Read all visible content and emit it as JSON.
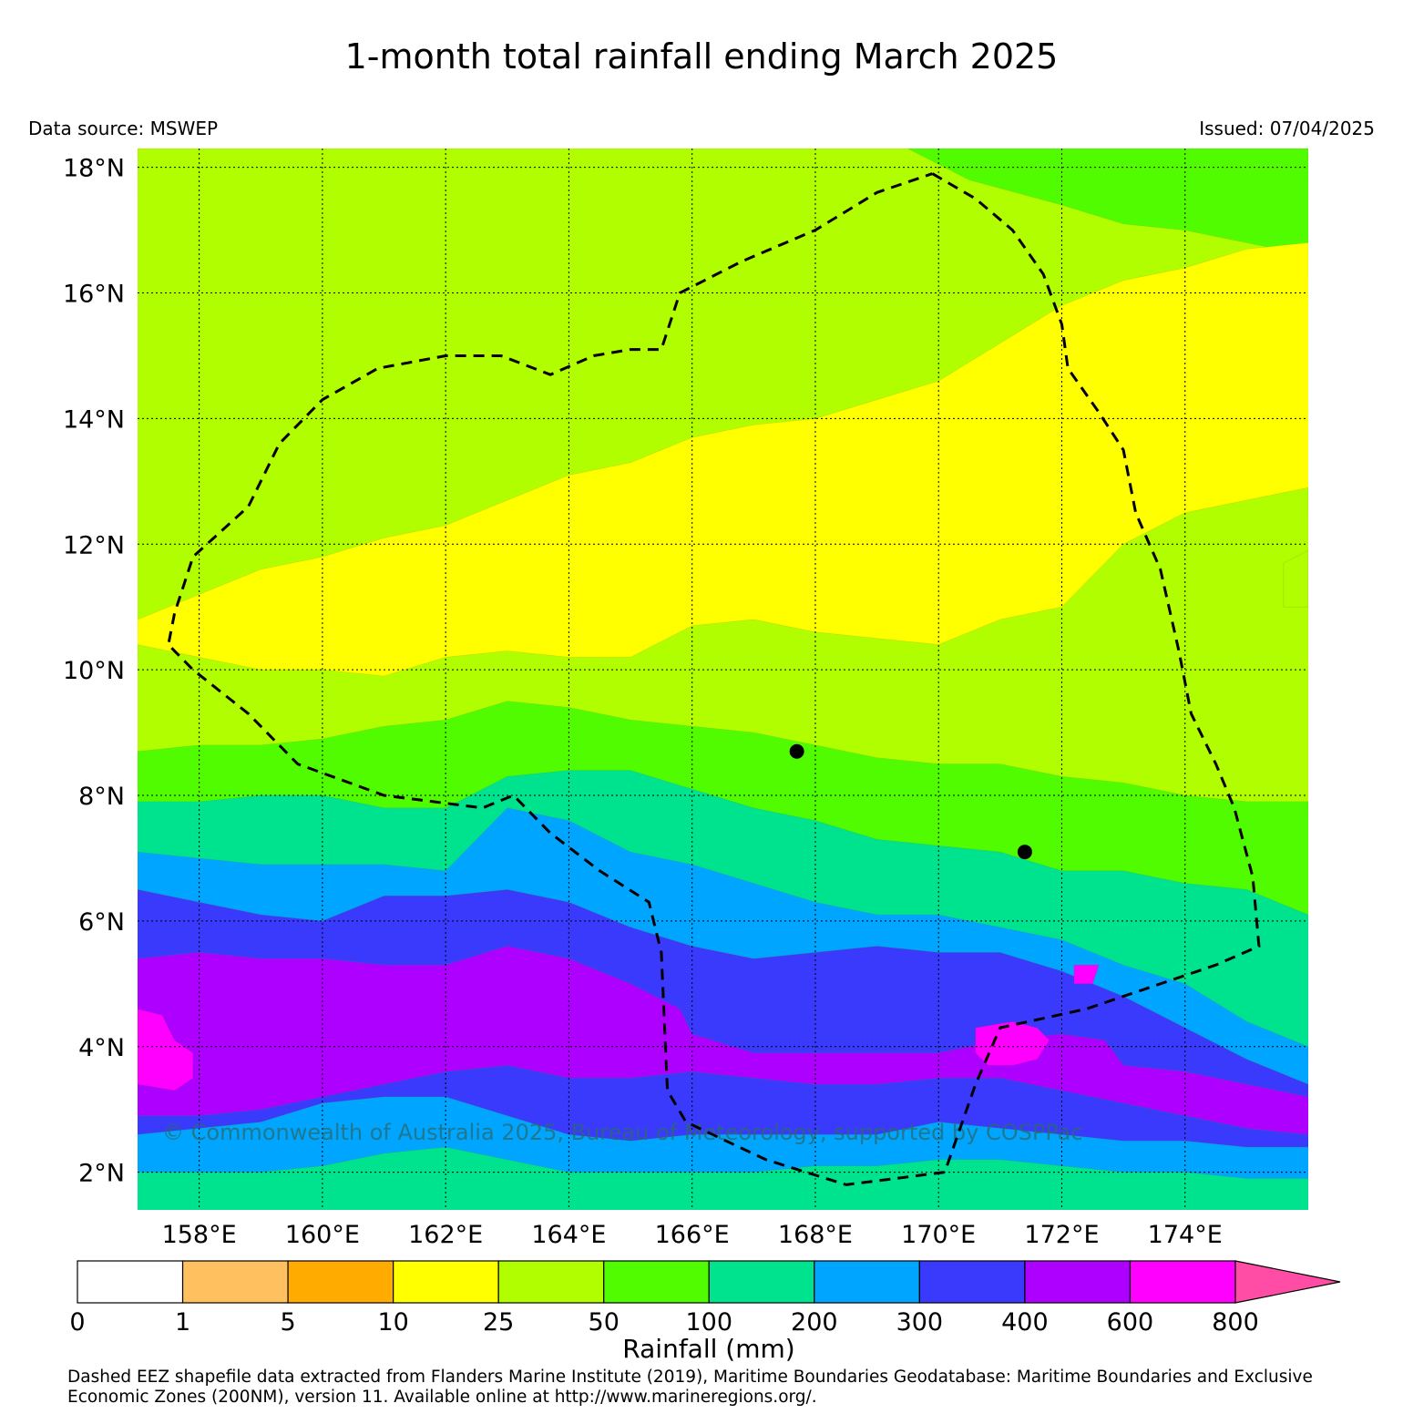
{
  "title": "1-month total rainfall ending March 2025",
  "data_source": "Data source: MSWEP",
  "issued": "Issued: 07/04/2025",
  "watermark": "© Commonwealth of Australia 2025, Bureau of Meteorology, supported by COSPPac",
  "footnote": "Dashed EEZ shapefile data extracted from Flanders Marine Institute (2019), Maritime Boundaries Geodatabase: Maritime Boundaries and Exclusive Economic Zones (200NM), version 11. Available online at http://www.marineregions.org/.",
  "map": {
    "lon_range": [
      157,
      176
    ],
    "lat_range": [
      1.4,
      18.3
    ],
    "lon_ticks": [
      158,
      160,
      162,
      164,
      166,
      168,
      170,
      172,
      174
    ],
    "lon_tick_labels": [
      "158°E",
      "160°E",
      "162°E",
      "164°E",
      "166°E",
      "168°E",
      "170°E",
      "172°E",
      "174°E"
    ],
    "lat_ticks": [
      2,
      4,
      6,
      8,
      10,
      12,
      14,
      16,
      18
    ],
    "lat_tick_labels": [
      "2°N",
      "4°N",
      "6°N",
      "8°N",
      "10°N",
      "12°N",
      "14°N",
      "16°N",
      "18°N"
    ],
    "grid": true,
    "eez_boundary": [
      [
        169.9,
        17.9
      ],
      [
        170.6,
        17.5
      ],
      [
        171.2,
        17.0
      ],
      [
        171.7,
        16.3
      ],
      [
        172.0,
        15.5
      ],
      [
        172.1,
        14.8
      ],
      [
        172.6,
        14.1
      ],
      [
        173.0,
        13.5
      ],
      [
        173.2,
        12.5
      ],
      [
        173.6,
        11.6
      ],
      [
        173.9,
        10.3
      ],
      [
        174.1,
        9.3
      ],
      [
        174.5,
        8.5
      ],
      [
        174.8,
        7.8
      ],
      [
        175.1,
        6.7
      ],
      [
        175.2,
        5.6
      ],
      [
        174.5,
        5.3
      ],
      [
        173.0,
        4.8
      ],
      [
        172.4,
        4.6
      ],
      [
        171.0,
        4.3
      ],
      [
        170.6,
        3.4
      ],
      [
        170.1,
        2.0
      ],
      [
        168.5,
        1.8
      ],
      [
        167.2,
        2.2
      ],
      [
        165.9,
        2.8
      ],
      [
        165.6,
        3.3
      ],
      [
        165.5,
        5.5
      ],
      [
        165.3,
        6.3
      ],
      [
        164.5,
        6.8
      ],
      [
        163.7,
        7.4
      ],
      [
        163.1,
        8.0
      ],
      [
        162.6,
        7.8
      ],
      [
        161.0,
        8.0
      ],
      [
        159.6,
        8.5
      ],
      [
        158.8,
        9.3
      ],
      [
        157.9,
        10.0
      ],
      [
        157.5,
        10.4
      ],
      [
        157.6,
        10.9
      ],
      [
        157.9,
        11.8
      ],
      [
        158.8,
        12.6
      ],
      [
        159.3,
        13.6
      ],
      [
        160.0,
        14.3
      ],
      [
        160.9,
        14.8
      ],
      [
        162.0,
        15.0
      ],
      [
        162.9,
        15.0
      ],
      [
        163.7,
        14.7
      ],
      [
        164.4,
        15.0
      ],
      [
        165.0,
        15.1
      ],
      [
        165.5,
        15.1
      ],
      [
        165.8,
        16.0
      ],
      [
        166.8,
        16.5
      ],
      [
        168.0,
        17.0
      ],
      [
        169.0,
        17.6
      ],
      [
        169.9,
        17.9
      ]
    ],
    "markers": [
      {
        "lon": 167.7,
        "lat": 8.7
      },
      {
        "lon": 171.4,
        "lat": 7.1
      }
    ],
    "rainfall_zones": [
      {
        "category_index": 5,
        "color": "#52fc00",
        "upper_boundary": [
          [
            157,
            18.3
          ],
          [
            176,
            18.3
          ]
        ]
      },
      {
        "category_index": 4,
        "color": "#b0fe00",
        "upper_boundary": [
          [
            157,
            18.3
          ],
          [
            169.5,
            18.3
          ],
          [
            170.5,
            17.8
          ],
          [
            172,
            17.4
          ],
          [
            173,
            17.1
          ],
          [
            174,
            17.0
          ],
          [
            175,
            16.8
          ],
          [
            176,
            16.6
          ]
        ]
      },
      {
        "category_index": 3,
        "color": "#ffff00",
        "upper_boundary": [
          [
            157,
            10.8
          ],
          [
            158,
            11.2
          ],
          [
            159,
            11.6
          ],
          [
            160,
            11.8
          ],
          [
            161,
            12.1
          ],
          [
            162,
            12.3
          ],
          [
            163,
            12.7
          ],
          [
            164,
            13.1
          ],
          [
            165,
            13.3
          ],
          [
            166,
            13.7
          ],
          [
            167,
            13.9
          ],
          [
            168,
            14.0
          ],
          [
            169,
            14.3
          ],
          [
            170,
            14.6
          ],
          [
            171,
            15.2
          ],
          [
            172,
            15.8
          ],
          [
            173,
            16.2
          ],
          [
            174,
            16.4
          ],
          [
            175,
            16.7
          ],
          [
            176,
            16.8
          ]
        ]
      },
      {
        "category_index": 4,
        "color": "#b0fe00",
        "upper_boundary": [
          [
            157,
            10.4
          ],
          [
            158,
            10.2
          ],
          [
            159,
            10.0
          ],
          [
            160,
            10.0
          ],
          [
            161,
            9.9
          ],
          [
            162,
            10.2
          ],
          [
            163,
            10.3
          ],
          [
            164,
            10.2
          ],
          [
            165,
            10.2
          ],
          [
            166,
            10.7
          ],
          [
            167,
            10.8
          ],
          [
            168,
            10.6
          ],
          [
            169,
            10.5
          ],
          [
            170,
            10.4
          ],
          [
            171,
            10.8
          ],
          [
            172,
            11.0
          ],
          [
            173,
            12.0
          ],
          [
            174,
            12.5
          ],
          [
            175,
            12.7
          ],
          [
            176,
            12.9
          ]
        ]
      },
      {
        "category_index": 5,
        "color": "#52fc00",
        "upper_boundary": [
          [
            157,
            8.7
          ],
          [
            158,
            8.8
          ],
          [
            159,
            8.8
          ],
          [
            160,
            8.9
          ],
          [
            161,
            9.1
          ],
          [
            162,
            9.2
          ],
          [
            163,
            9.5
          ],
          [
            164,
            9.4
          ],
          [
            165,
            9.2
          ],
          [
            166,
            9.1
          ],
          [
            167,
            9.0
          ],
          [
            168,
            8.8
          ],
          [
            169,
            8.6
          ],
          [
            170,
            8.5
          ],
          [
            171,
            8.5
          ],
          [
            172,
            8.3
          ],
          [
            173,
            8.2
          ],
          [
            174,
            8.0
          ],
          [
            175,
            7.9
          ],
          [
            176,
            7.9
          ]
        ]
      },
      {
        "category_index": 6,
        "color": "#00e38e",
        "upper_boundary": [
          [
            157,
            7.9
          ],
          [
            158,
            7.9
          ],
          [
            159,
            8.0
          ],
          [
            160,
            8.0
          ],
          [
            161,
            7.8
          ],
          [
            162,
            7.8
          ],
          [
            163,
            8.3
          ],
          [
            164,
            8.4
          ],
          [
            165,
            8.4
          ],
          [
            166,
            8.1
          ],
          [
            167,
            7.8
          ],
          [
            168,
            7.6
          ],
          [
            169,
            7.3
          ],
          [
            170,
            7.2
          ],
          [
            171,
            7.1
          ],
          [
            172,
            6.8
          ],
          [
            173,
            6.8
          ],
          [
            174,
            6.6
          ],
          [
            175,
            6.5
          ],
          [
            176,
            6.1
          ]
        ]
      },
      {
        "category_index": 7,
        "color": "#00a5ff",
        "upper_boundary": [
          [
            157,
            7.1
          ],
          [
            158,
            7.0
          ],
          [
            159,
            6.9
          ],
          [
            160,
            6.9
          ],
          [
            161,
            6.9
          ],
          [
            162,
            6.8
          ],
          [
            163,
            7.8
          ],
          [
            164,
            7.6
          ],
          [
            165,
            7.1
          ],
          [
            166,
            6.9
          ],
          [
            167,
            6.6
          ],
          [
            168,
            6.3
          ],
          [
            169,
            6.1
          ],
          [
            170,
            6.1
          ],
          [
            171,
            5.9
          ],
          [
            172,
            5.7
          ],
          [
            173,
            5.3
          ],
          [
            174,
            5.0
          ],
          [
            175,
            4.4
          ],
          [
            176,
            4.0
          ]
        ]
      },
      {
        "category_index": 8,
        "color": "#3a3afc",
        "upper_boundary": [
          [
            157,
            6.5
          ],
          [
            158,
            6.3
          ],
          [
            159,
            6.1
          ],
          [
            160,
            6.0
          ],
          [
            161,
            6.4
          ],
          [
            162,
            6.4
          ],
          [
            163,
            6.5
          ],
          [
            164,
            6.3
          ],
          [
            165,
            5.9
          ],
          [
            166,
            5.6
          ],
          [
            167,
            5.4
          ],
          [
            168,
            5.5
          ],
          [
            169,
            5.6
          ],
          [
            170,
            5.5
          ],
          [
            171,
            5.5
          ],
          [
            172,
            5.2
          ],
          [
            173,
            4.8
          ],
          [
            174,
            4.3
          ],
          [
            175,
            3.8
          ],
          [
            176,
            3.4
          ]
        ]
      },
      {
        "category_index": 9,
        "color": "#ad00ff",
        "upper_boundary": [
          [
            157,
            5.4
          ],
          [
            158,
            5.5
          ],
          [
            159,
            5.4
          ],
          [
            160,
            5.4
          ],
          [
            161,
            5.3
          ],
          [
            162,
            5.3
          ],
          [
            163,
            5.6
          ],
          [
            164,
            5.4
          ],
          [
            165,
            5.0
          ],
          [
            165.8,
            4.6
          ],
          [
            166,
            4.2
          ],
          [
            167,
            3.9
          ],
          [
            168,
            3.9
          ],
          [
            169,
            3.9
          ],
          [
            170,
            3.9
          ],
          [
            171,
            4.1
          ],
          [
            172,
            4.2
          ],
          [
            172.7,
            4.1
          ],
          [
            173,
            3.7
          ],
          [
            174,
            3.6
          ],
          [
            175,
            3.4
          ],
          [
            176,
            3.2
          ]
        ]
      },
      {
        "category_index": 8,
        "color": "#3a3afc",
        "upper_boundary": [
          [
            157,
            2.9
          ],
          [
            158,
            2.9
          ],
          [
            159,
            3.0
          ],
          [
            160,
            3.2
          ],
          [
            161,
            3.4
          ],
          [
            162,
            3.6
          ],
          [
            163,
            3.7
          ],
          [
            164,
            3.5
          ],
          [
            165,
            3.5
          ],
          [
            166,
            3.6
          ],
          [
            167,
            3.5
          ],
          [
            168,
            3.4
          ],
          [
            169,
            3.4
          ],
          [
            170,
            3.5
          ],
          [
            171,
            3.5
          ],
          [
            172,
            3.3
          ],
          [
            173,
            3.1
          ],
          [
            174,
            2.9
          ],
          [
            175,
            2.7
          ],
          [
            176,
            2.6
          ]
        ]
      },
      {
        "category_index": 7,
        "color": "#00a5ff",
        "upper_boundary": [
          [
            157,
            2.6
          ],
          [
            158,
            2.7
          ],
          [
            159,
            2.8
          ],
          [
            160,
            3.1
          ],
          [
            161,
            3.2
          ],
          [
            162,
            3.2
          ],
          [
            163,
            2.9
          ],
          [
            164,
            2.6
          ],
          [
            165,
            2.5
          ],
          [
            166,
            2.6
          ],
          [
            167,
            2.6
          ],
          [
            168,
            2.6
          ],
          [
            169,
            2.6
          ],
          [
            170,
            2.8
          ],
          [
            171,
            2.7
          ],
          [
            172,
            2.6
          ],
          [
            173,
            2.5
          ],
          [
            174,
            2.5
          ],
          [
            175,
            2.4
          ],
          [
            176,
            2.4
          ]
        ]
      },
      {
        "category_index": 6,
        "color": "#00e38e",
        "upper_boundary": [
          [
            157,
            2.0
          ],
          [
            158,
            2.0
          ],
          [
            159,
            2.0
          ],
          [
            160,
            2.1
          ],
          [
            161,
            2.3
          ],
          [
            162,
            2.4
          ],
          [
            163,
            2.2
          ],
          [
            164,
            2.0
          ],
          [
            165,
            2.0
          ],
          [
            166,
            2.0
          ],
          [
            167,
            2.0
          ],
          [
            168,
            2.1
          ],
          [
            169,
            2.1
          ],
          [
            170,
            2.2
          ],
          [
            171,
            2.2
          ],
          [
            172,
            2.1
          ],
          [
            173,
            2.0
          ],
          [
            174,
            2.0
          ],
          [
            175,
            1.9
          ],
          [
            176,
            1.9
          ]
        ]
      }
    ],
    "rainfall_patches": [
      {
        "category_index": 10,
        "color": "#ff00ff",
        "points": [
          [
            157,
            4.6
          ],
          [
            157.4,
            4.5
          ],
          [
            157.6,
            4.1
          ],
          [
            157.9,
            3.9
          ],
          [
            157.9,
            3.5
          ],
          [
            157.6,
            3.3
          ],
          [
            157,
            3.4
          ]
        ]
      },
      {
        "category_index": 10,
        "color": "#ff00ff",
        "points": [
          [
            170.6,
            4.3
          ],
          [
            171.2,
            4.4
          ],
          [
            171.6,
            4.3
          ],
          [
            171.8,
            4.1
          ],
          [
            171.6,
            3.8
          ],
          [
            171.2,
            3.7
          ],
          [
            170.8,
            3.7
          ],
          [
            170.6,
            3.9
          ]
        ]
      },
      {
        "category_index": 10,
        "color": "#ff00ff",
        "points": [
          [
            172.2,
            5.3
          ],
          [
            172.6,
            5.3
          ],
          [
            172.5,
            5.0
          ],
          [
            172.2,
            5.0
          ]
        ]
      },
      {
        "category_index": 4,
        "color": "#b0fe00",
        "points": [
          [
            175.6,
            11.7
          ],
          [
            176,
            11.9
          ],
          [
            176,
            11.0
          ],
          [
            175.6,
            11.0
          ]
        ]
      }
    ]
  },
  "colorbar": {
    "title": "Rainfall (mm)",
    "tick_labels": [
      "0",
      "1",
      "5",
      "10",
      "25",
      "50",
      "100",
      "200",
      "300",
      "400",
      "600",
      "800"
    ],
    "colors": [
      "#ffffff",
      "#ffc060",
      "#ffab00",
      "#ffff00",
      "#b0fe00",
      "#52fc00",
      "#00e38e",
      "#00a5ff",
      "#3a3afc",
      "#ad00ff",
      "#ff00ff"
    ],
    "extend_color": "#ff4da6"
  }
}
